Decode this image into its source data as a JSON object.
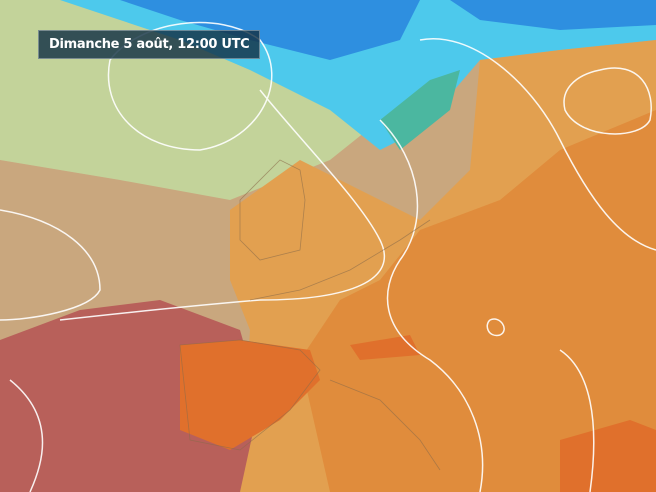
{
  "map": {
    "timestamp_label": "Dimanche 5 août, 12:00 UTC",
    "colors": {
      "cold_blue": "#2e8fe0",
      "light_blue": "#4dc9ec",
      "teal": "#4bb7a0",
      "pale_green": "#c3d39a",
      "tan": "#c9ab7f",
      "orange_light": "#e2a050",
      "orange": "#e08c3c",
      "orange_deep": "#e0702c",
      "red_brown": "#b8605a",
      "isoline": "#ffffff"
    }
  }
}
